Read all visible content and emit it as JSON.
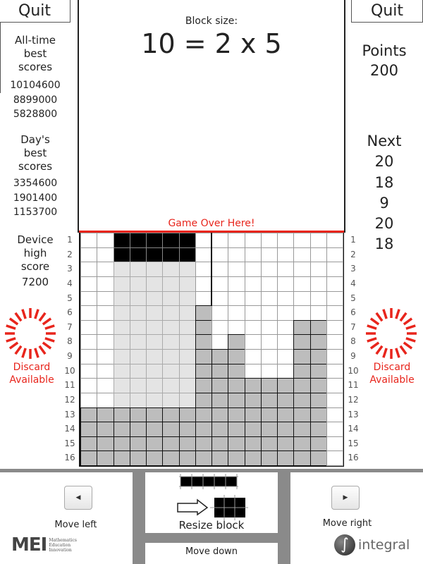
{
  "quit_label": "Quit",
  "block_size": {
    "label": "Block size:",
    "equation": "10 = 2 x 5"
  },
  "left_panel": {
    "all_time": {
      "label": [
        "All-time",
        "best",
        "scores"
      ],
      "scores": [
        "10104600",
        "8899000",
        "5828800"
      ]
    },
    "day": {
      "label": [
        "Day's",
        "best",
        "scores"
      ],
      "scores": [
        "3354600",
        "1901400",
        "1153700"
      ]
    },
    "device": {
      "label": [
        "Device",
        "high",
        "score"
      ],
      "score": "7200"
    },
    "discard": [
      "Discard",
      "Available"
    ]
  },
  "right_panel": {
    "points_label": "Points",
    "points": "200",
    "next_label": "Next",
    "next": [
      "20",
      "18",
      "9",
      "20",
      "18"
    ],
    "discard": [
      "Discard",
      "Available"
    ]
  },
  "game_over_label": "Game Over Here!",
  "grid": {
    "columns": 16,
    "rows": 16,
    "row_labels": [
      "1",
      "2",
      "3",
      "4",
      "5",
      "6",
      "7",
      "8",
      "9",
      "10",
      "11",
      "12",
      "13",
      "14",
      "15",
      "16"
    ],
    "filled_from_row": [
      13,
      13,
      13,
      13,
      13,
      13,
      13,
      6,
      9,
      8,
      11,
      11,
      11,
      7,
      7,
      null
    ],
    "active_block": {
      "cols": [
        3,
        7
      ],
      "rows": [
        1,
        2
      ]
    },
    "shadow": {
      "cols": [
        3,
        7
      ],
      "rows": [
        3,
        12
      ]
    }
  },
  "colors": {
    "filled": "#bdbdbd",
    "active": "#000000",
    "shadow": "#e4e4e4",
    "accent": "#e8251c"
  },
  "controls": {
    "move_left": "Move left",
    "move_right": "Move right",
    "resize": "Resize block",
    "move_down": "Move down"
  },
  "logos": {
    "mei": "MEI",
    "mei_sub": [
      "Mathematics",
      "Education",
      "Innovation"
    ],
    "integral": "integral"
  }
}
